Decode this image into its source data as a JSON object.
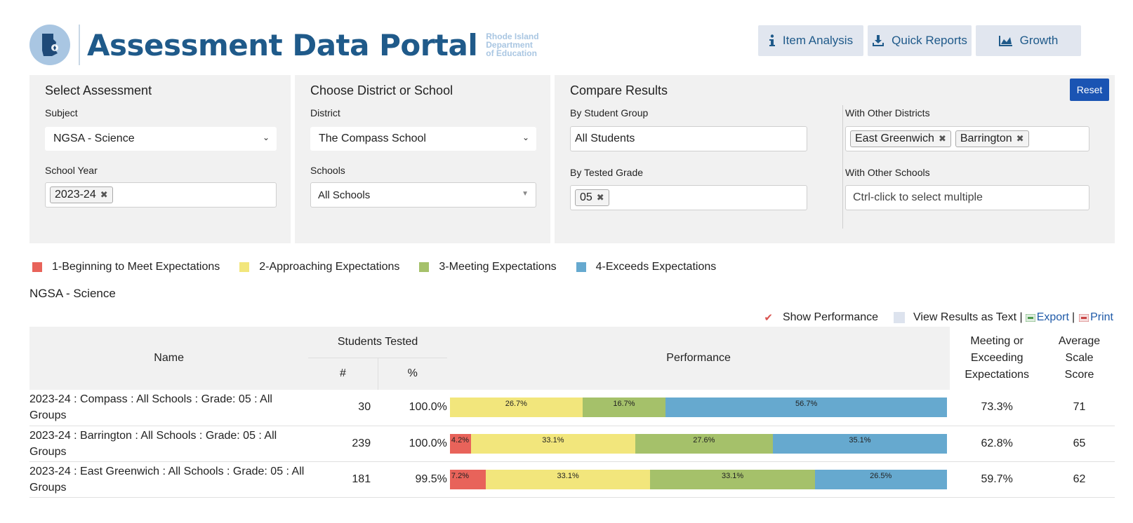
{
  "header": {
    "title": "Assessment Data Portal",
    "org_line1": "Rhode Island",
    "org_line2": "Department",
    "org_line3": "of Education",
    "nav": [
      {
        "label": "Item Analysis",
        "icon": "info-icon"
      },
      {
        "label": "Quick Reports",
        "icon": "download-icon"
      },
      {
        "label": "Growth",
        "icon": "area-chart-icon"
      }
    ]
  },
  "filters": {
    "assessment": {
      "title": "Select Assessment",
      "subject_label": "Subject",
      "subject_value": "NGSA - Science",
      "year_label": "School Year",
      "year_tags": [
        "2023-24"
      ]
    },
    "district": {
      "title": "Choose District or School",
      "district_label": "District",
      "district_value": "The Compass School",
      "schools_label": "Schools",
      "schools_value": "All Schools"
    },
    "compare": {
      "title": "Compare Results",
      "reset_label": "Reset",
      "group_label": "By Student Group",
      "group_value": "All Students",
      "grade_label": "By Tested Grade",
      "grade_tags": [
        "05"
      ],
      "districts_label": "With Other Districts",
      "district_tags": [
        "East Greenwich",
        "Barrington"
      ],
      "schools_label": "With Other Schools",
      "schools_placeholder": "Ctrl-click to select multiple"
    }
  },
  "legend": [
    {
      "label": "1-Beginning to Meet Expectations",
      "color": "#e8635a"
    },
    {
      "label": "2-Approaching Expectations",
      "color": "#f2e67c"
    },
    {
      "label": "3-Meeting Expectations",
      "color": "#a5c16a"
    },
    {
      "label": "4-Exceeds Expectations",
      "color": "#66a9cf"
    }
  ],
  "section_title": "NGSA - Science",
  "toolbar": {
    "show_performance": "Show Performance",
    "view_text": "View Results as Text |",
    "export": "Export",
    "sep": "|",
    "print": "Print"
  },
  "table": {
    "headers": {
      "name": "Name",
      "students_tested": "Students Tested",
      "count": "#",
      "pct": "%",
      "performance": "Performance",
      "meeting_l1": "Meeting or",
      "meeting_l2": "Exceeding",
      "meeting_l3": "Expectations",
      "avg_l1": "Average",
      "avg_l2": "Scale",
      "avg_l3": "Score"
    },
    "rows": [
      {
        "name": "2023-24 : Compass : All Schools : Grade: 05 : All Groups",
        "count": "30",
        "pct": "100.0%",
        "performance": [
          {
            "level": 1,
            "value": 0,
            "label": ""
          },
          {
            "level": 2,
            "value": 26.7,
            "label": "26.7%"
          },
          {
            "level": 3,
            "value": 16.7,
            "label": "16.7%"
          },
          {
            "level": 4,
            "value": 56.7,
            "label": "56.7%"
          }
        ],
        "meeting": "73.3%",
        "avg": "71"
      },
      {
        "name": "2023-24 : Barrington : All Schools : Grade: 05 : All Groups",
        "count": "239",
        "pct": "100.0%",
        "performance": [
          {
            "level": 1,
            "value": 4.2,
            "label": "4.2%"
          },
          {
            "level": 2,
            "value": 33.1,
            "label": "33.1%"
          },
          {
            "level": 3,
            "value": 27.6,
            "label": "27.6%"
          },
          {
            "level": 4,
            "value": 35.1,
            "label": "35.1%"
          }
        ],
        "meeting": "62.8%",
        "avg": "65"
      },
      {
        "name": "2023-24 : East Greenwich : All Schools : Grade: 05 : All Groups",
        "count": "181",
        "pct": "99.5%",
        "performance": [
          {
            "level": 1,
            "value": 7.2,
            "label": "7.2%"
          },
          {
            "level": 2,
            "value": 33.1,
            "label": "33.1%"
          },
          {
            "level": 3,
            "value": 33.1,
            "label": "33.1%"
          },
          {
            "level": 4,
            "value": 26.5,
            "label": "26.5%"
          }
        ],
        "meeting": "59.7%",
        "avg": "62"
      }
    ]
  }
}
